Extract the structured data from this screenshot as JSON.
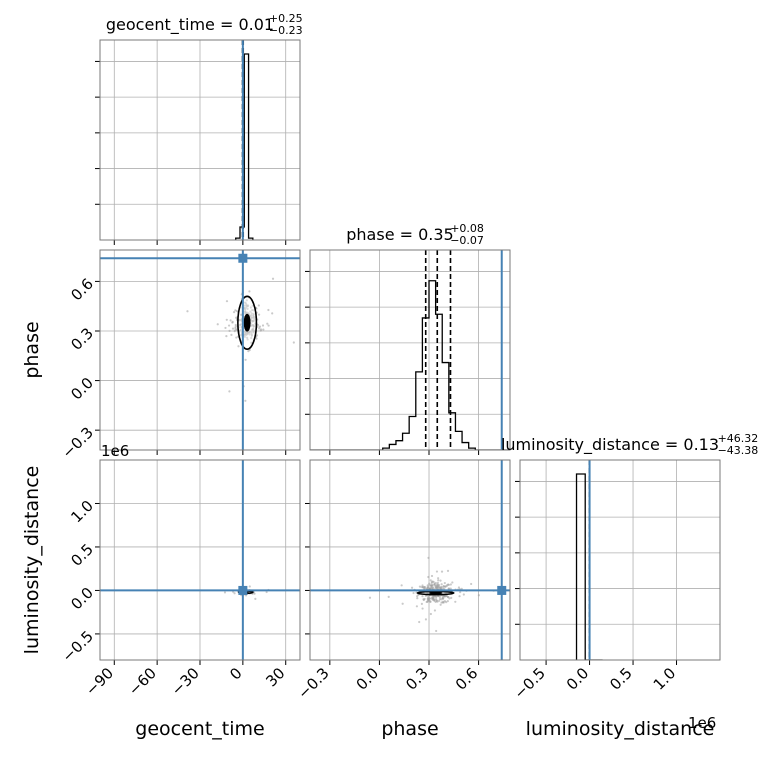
{
  "chart_data": {
    "type": "scatter",
    "kind": "corner-plot",
    "parameters": [
      "geocent_time",
      "phase",
      "luminosity_distance"
    ],
    "colors": {
      "truth": "#4682b4",
      "hist": "#000000",
      "grid": "#b0b0b0",
      "scatter": "#9e9e9e"
    },
    "grid": true,
    "titles": [
      {
        "param": "geocent_time",
        "main": "geocent_time = 0.01",
        "plus": "+0.25",
        "minus": "−0.23"
      },
      {
        "param": "phase",
        "main": "phase = 0.35",
        "plus": "+0.08",
        "minus": "−0.07"
      },
      {
        "param": "luminosity_distance",
        "main": "luminosity_distance = 0.13",
        "plus": "+46.32",
        "minus": "−43.38"
      }
    ],
    "axis_labels": {
      "geocent_time": "geocent_time",
      "phase": "phase",
      "luminosity_distance": "luminosity_distance"
    },
    "ranges": {
      "geocent_time": [
        -100,
        40
      ],
      "phase": [
        -0.42,
        0.79
      ],
      "luminosity_distance": [
        -800000,
        1500000
      ]
    },
    "ticks": {
      "geocent_time": {
        "values": [
          -90,
          -60,
          -30,
          0,
          30
        ],
        "labels": [
          "−90",
          "−60",
          "−30",
          "0",
          "30"
        ]
      },
      "phase": {
        "values": [
          -0.3,
          0.0,
          0.3,
          0.6
        ],
        "labels": [
          "−0.3",
          "0.0",
          "0.3",
          "0.6"
        ]
      },
      "luminosity_distance": {
        "values": [
          -500000,
          0,
          500000,
          1000000
        ],
        "labels": [
          "−0.5",
          "0.0",
          "0.5",
          "1.0"
        ]
      }
    },
    "offset_labels": {
      "y": "1e6",
      "x": "1e6"
    },
    "truths": {
      "geocent_time": 0.0,
      "phase": 0.74,
      "luminosity_distance": 0
    },
    "quantile_lines": {
      "geocent_time": [
        -0.22,
        0.01,
        0.26
      ],
      "phase": [
        0.28,
        0.35,
        0.43
      ],
      "luminosity_distance": [
        -43.25,
        0.13,
        46.45
      ]
    },
    "histograms": {
      "geocent_time": {
        "edges": [
          -5,
          -2,
          1,
          4,
          7
        ],
        "counts": [
          0.01,
          0.07,
          1.0,
          0.01
        ]
      },
      "phase": {
        "edges": [
          -0.42,
          -0.34,
          -0.3,
          -0.26,
          -0.22,
          -0.18,
          -0.14,
          -0.1,
          -0.06,
          -0.02,
          0.02,
          0.06,
          0.1,
          0.14,
          0.18,
          0.22,
          0.26,
          0.3,
          0.34,
          0.38,
          0.42,
          0.46,
          0.5,
          0.54,
          0.58,
          0.62,
          0.66,
          0.79
        ],
        "counts": [
          0.0,
          0.0,
          0.0,
          0.0,
          0.0,
          0.0,
          0.0,
          0.0,
          0.0,
          0.0,
          0.01,
          0.03,
          0.05,
          0.09,
          0.18,
          0.42,
          0.71,
          0.91,
          0.73,
          0.47,
          0.2,
          0.1,
          0.04,
          0.01,
          0.0,
          0.0,
          0.0
        ]
      },
      "luminosity_distance": {
        "edges": [
          -150000,
          -50000,
          50000,
          150000
        ],
        "counts": [
          1.0,
          0.0,
          0.0
        ]
      }
    },
    "blobs": {
      "geocent_time_vs_phase": {
        "center": [
          3.0,
          0.35
        ],
        "spread": [
          4.0,
          0.06
        ],
        "n": 260,
        "contours": [
          {
            "rx": 6.5,
            "ry": 0.16
          },
          {
            "rx": 2.0,
            "ry": 0.05
          }
        ]
      },
      "geocent_time_vs_luminosity_distance": {
        "center": [
          2.0,
          -20000
        ],
        "spread": [
          3.0,
          10000
        ],
        "n": 60,
        "contours": [
          {
            "rx": 5.0,
            "ry": 14000
          },
          {
            "rx": 1.5,
            "ry": 5000
          }
        ]
      },
      "phase_vs_luminosity_distance": {
        "center": [
          0.34,
          -30000
        ],
        "spread": [
          0.05,
          60000
        ],
        "n": 300,
        "contours": [
          {
            "rx": 0.11,
            "ry": 18000
          },
          {
            "rx": 0.035,
            "ry": 9000
          }
        ]
      }
    }
  }
}
